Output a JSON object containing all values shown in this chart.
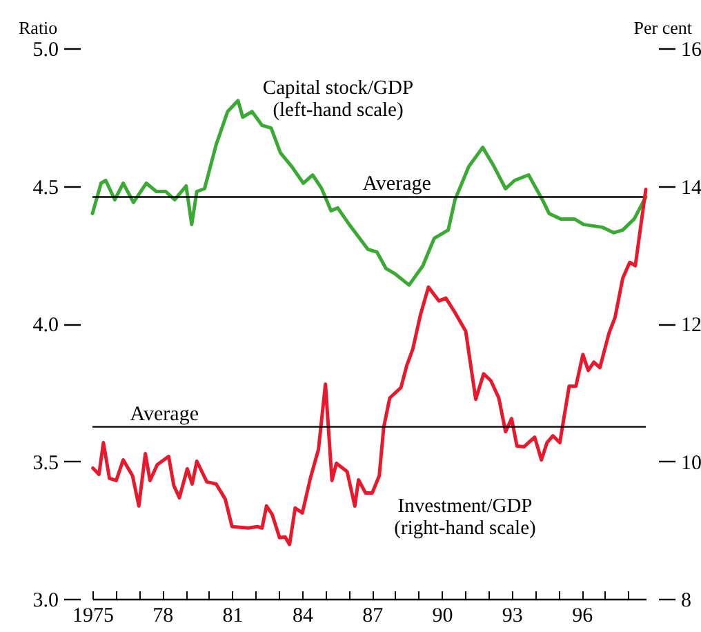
{
  "chart_data": {
    "type": "line",
    "ylabel": "Ratio",
    "y2label": "Per cent",
    "xlim": [
      1975,
      1998.75
    ],
    "xticks": [
      {
        "value": 1975,
        "label": "1975"
      },
      {
        "value": 1976,
        "label": null
      },
      {
        "value": 1977,
        "label": null
      },
      {
        "value": 1978,
        "label": "78"
      },
      {
        "value": 1979,
        "label": null
      },
      {
        "value": 1980,
        "label": null
      },
      {
        "value": 1981,
        "label": "81"
      },
      {
        "value": 1982,
        "label": null
      },
      {
        "value": 1983,
        "label": null
      },
      {
        "value": 1984,
        "label": "84"
      },
      {
        "value": 1985,
        "label": null
      },
      {
        "value": 1986,
        "label": null
      },
      {
        "value": 1987,
        "label": "87"
      },
      {
        "value": 1988,
        "label": null
      },
      {
        "value": 1989,
        "label": null
      },
      {
        "value": 1990,
        "label": "90"
      },
      {
        "value": 1991,
        "label": null
      },
      {
        "value": 1992,
        "label": null
      },
      {
        "value": 1993,
        "label": "93"
      },
      {
        "value": 1994,
        "label": null
      },
      {
        "value": 1995,
        "label": null
      },
      {
        "value": 1996,
        "label": "96"
      },
      {
        "value": 1997,
        "label": null
      },
      {
        "value": 1998,
        "label": null
      }
    ],
    "ylim": [
      3,
      5
    ],
    "yticks": [
      {
        "value": 3,
        "label": "3.0"
      },
      3.5,
      {
        "value": 4,
        "label": "4.0"
      },
      4.5,
      {
        "value": 5,
        "label": "5.0"
      }
    ],
    "y2lim": [
      8,
      16
    ],
    "y2ticks": [
      8,
      10,
      12,
      14,
      16
    ],
    "series": [
      {
        "name": "Capital stock/GDP\n(left-hand scale)",
        "color": "#3aaa35",
        "x": [
          1975.0,
          1975.37,
          1975.57,
          1975.96,
          1976.32,
          1976.76,
          1977.31,
          1977.74,
          1978.14,
          1978.53,
          1979.02,
          1979.26,
          1979.48,
          1979.81,
          1980.31,
          1980.8,
          1981.25,
          1981.45,
          1981.85,
          1982.28,
          1982.67,
          1983.07,
          1983.56,
          1984.05,
          1984.45,
          1984.84,
          1985.24,
          1985.53,
          1986.02,
          1986.82,
          1987.21,
          1987.6,
          1988.0,
          1988.59,
          1989.18,
          1989.67,
          1990.27,
          1990.56,
          1991.15,
          1991.75,
          1992.24,
          1992.73,
          1993.12,
          1993.72,
          1994.31,
          1994.6,
          1995.1,
          1995.69,
          1996.08,
          1996.88,
          1997.37,
          1997.76,
          1998.25,
          1998.75
        ],
        "values": [
          4.4,
          4.51,
          4.52,
          4.45,
          4.51,
          4.44,
          4.51,
          4.48,
          4.48,
          4.45,
          4.5,
          4.36,
          4.48,
          4.49,
          4.65,
          4.77,
          4.81,
          4.75,
          4.77,
          4.72,
          4.71,
          4.62,
          4.57,
          4.51,
          4.54,
          4.49,
          4.41,
          4.42,
          4.36,
          4.27,
          4.26,
          4.2,
          4.18,
          4.14,
          4.21,
          4.31,
          4.34,
          4.45,
          4.57,
          4.64,
          4.57,
          4.49,
          4.52,
          4.54,
          4.45,
          4.4,
          4.38,
          4.38,
          4.36,
          4.35,
          4.33,
          4.34,
          4.38,
          4.46
        ]
      },
      {
        "name": "Investment/GDP\n(right-hand scale)",
        "color": "#e8192c",
        "axis": "y2",
        "x": [
          1975.02,
          1975.28,
          1975.47,
          1975.73,
          1976.02,
          1976.32,
          1976.72,
          1976.99,
          1977.27,
          1977.47,
          1977.78,
          1978.27,
          1978.49,
          1978.73,
          1979.07,
          1979.28,
          1979.48,
          1979.91,
          1980.31,
          1980.7,
          1980.99,
          1981.69,
          1982.08,
          1982.28,
          1982.47,
          1982.71,
          1983.03,
          1983.27,
          1983.46,
          1983.7,
          1984.01,
          1984.35,
          1984.7,
          1985.0,
          1985.28,
          1985.47,
          1985.93,
          1986.26,
          1986.42,
          1986.72,
          1987.01,
          1987.31,
          1987.5,
          1987.76,
          1988.24,
          1988.49,
          1988.75,
          1989.08,
          1989.42,
          1989.87,
          1990.17,
          1990.56,
          1991.02,
          1991.45,
          1991.79,
          1992.1,
          1992.44,
          1992.73,
          1992.99,
          1993.22,
          1993.52,
          1993.98,
          1994.27,
          1994.51,
          1994.76,
          1995.06,
          1995.46,
          1995.75,
          1996.05,
          1996.28,
          1996.52,
          1996.78,
          1997.17,
          1997.43,
          1997.76,
          1998.06,
          1998.3,
          1998.75
        ],
        "values": [
          9.9,
          9.81,
          10.27,
          9.75,
          9.72,
          10.02,
          9.79,
          9.35,
          10.11,
          9.72,
          9.95,
          10.07,
          9.65,
          9.47,
          9.89,
          9.67,
          10.0,
          9.7,
          9.67,
          9.45,
          9.05,
          9.03,
          9.05,
          9.03,
          9.35,
          9.23,
          8.89,
          8.9,
          8.79,
          9.32,
          9.25,
          9.75,
          10.17,
          11.12,
          9.72,
          9.97,
          9.85,
          9.35,
          9.73,
          9.54,
          9.54,
          9.79,
          10.49,
          10.92,
          11.07,
          11.39,
          11.63,
          12.13,
          12.53,
          12.33,
          12.37,
          12.16,
          11.89,
          10.9,
          11.27,
          11.17,
          10.92,
          10.43,
          10.62,
          10.22,
          10.21,
          10.35,
          10.02,
          10.27,
          10.37,
          10.27,
          11.09,
          11.09,
          11.55,
          11.32,
          11.44,
          11.36,
          11.86,
          12.09,
          12.66,
          12.89,
          12.84,
          13.95
        ]
      }
    ],
    "ref_lines": [
      {
        "axis": "y",
        "value": 4.46,
        "label": "Average"
      },
      {
        "axis": "y2",
        "value": 10.5,
        "label": "Average"
      }
    ]
  }
}
